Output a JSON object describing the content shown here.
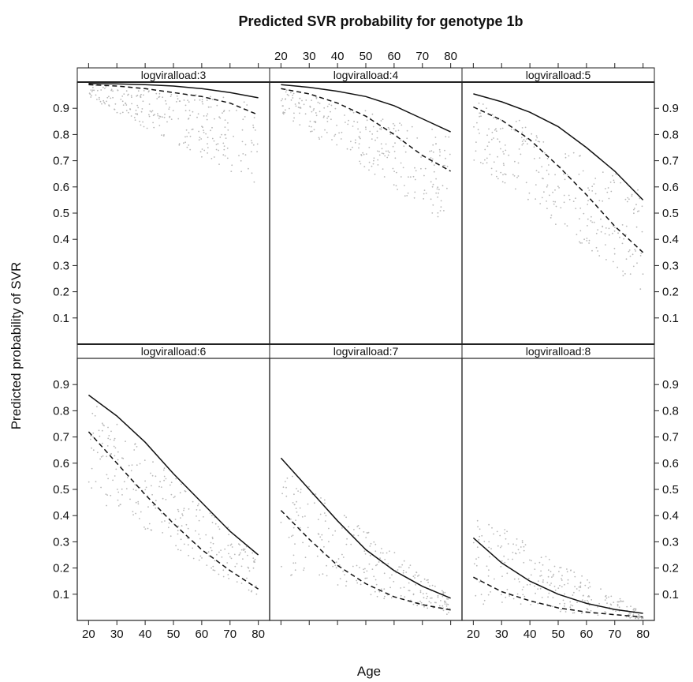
{
  "chart_data": {
    "type": "line",
    "title": "Predicted SVR probability for genotype 1b",
    "xlabel": "Age",
    "ylabel": "Predicted probability of SVR",
    "xlim": [
      16,
      84
    ],
    "ylim": [
      0,
      1.0
    ],
    "xticks": [
      20,
      30,
      40,
      50,
      60,
      70,
      80
    ],
    "yticks": [
      0.1,
      0.2,
      0.3,
      0.4,
      0.5,
      0.6,
      0.7,
      0.8,
      0.9
    ],
    "legend": "none",
    "grid": false,
    "x": [
      20,
      30,
      40,
      50,
      60,
      70,
      80
    ],
    "panels": [
      {
        "label": "logviralload:3",
        "series": [
          {
            "style": "solid",
            "values": [
              0.995,
              0.993,
              0.99,
              0.985,
              0.975,
              0.96,
              0.94
            ]
          },
          {
            "style": "dashed",
            "values": [
              0.99,
              0.985,
              0.975,
              0.96,
              0.945,
              0.92,
              0.875
            ]
          }
        ],
        "scatter_band": {
          "x": [
            20,
            80
          ],
          "upper": [
            0.99,
            0.93
          ],
          "lower": [
            0.94,
            0.6
          ]
        }
      },
      {
        "label": "logviralload:4",
        "series": [
          {
            "style": "solid",
            "values": [
              0.99,
              0.98,
              0.965,
              0.945,
              0.91,
              0.86,
              0.81
            ]
          },
          {
            "style": "dashed",
            "values": [
              0.975,
              0.955,
              0.92,
              0.87,
              0.8,
              0.72,
              0.66
            ]
          }
        ],
        "scatter_band": {
          "x": [
            20,
            80
          ],
          "upper": [
            0.985,
            0.8
          ],
          "lower": [
            0.88,
            0.45
          ]
        }
      },
      {
        "label": "logviralload:5",
        "series": [
          {
            "style": "solid",
            "values": [
              0.955,
              0.925,
              0.885,
              0.83,
              0.75,
              0.66,
              0.55
            ]
          },
          {
            "style": "dashed",
            "values": [
              0.905,
              0.855,
              0.78,
              0.68,
              0.57,
              0.45,
              0.35
            ]
          }
        ],
        "scatter_band": {
          "x": [
            20,
            80
          ],
          "upper": [
            0.95,
            0.6
          ],
          "lower": [
            0.7,
            0.2
          ]
        }
      },
      {
        "label": "logviralload:6",
        "series": [
          {
            "style": "solid",
            "values": [
              0.86,
              0.78,
              0.68,
              0.56,
              0.45,
              0.34,
              0.25
            ]
          },
          {
            "style": "dashed",
            "values": [
              0.72,
              0.6,
              0.48,
              0.37,
              0.27,
              0.19,
              0.12
            ]
          }
        ],
        "scatter_band": {
          "x": [
            20,
            80
          ],
          "upper": [
            0.85,
            0.25
          ],
          "lower": [
            0.48,
            0.08
          ]
        }
      },
      {
        "label": "logviralload:7",
        "series": [
          {
            "style": "solid",
            "values": [
              0.62,
              0.5,
              0.38,
              0.27,
              0.19,
              0.13,
              0.085
            ]
          },
          {
            "style": "dashed",
            "values": [
              0.42,
              0.31,
              0.21,
              0.14,
              0.09,
              0.06,
              0.04
            ]
          }
        ],
        "scatter_band": {
          "x": [
            20,
            80
          ],
          "upper": [
            0.6,
            0.09
          ],
          "lower": [
            0.18,
            0.02
          ]
        }
      },
      {
        "label": "logviralload:8",
        "series": [
          {
            "style": "solid",
            "values": [
              0.315,
              0.22,
              0.15,
              0.1,
              0.065,
              0.042,
              0.027
            ]
          },
          {
            "style": "dashed",
            "values": [
              0.165,
              0.11,
              0.075,
              0.048,
              0.032,
              0.022,
              0.013
            ]
          }
        ],
        "scatter_band": {
          "x": [
            20,
            80
          ],
          "upper": [
            0.42,
            0.03
          ],
          "lower": [
            0.06,
            0.005
          ]
        }
      }
    ]
  }
}
